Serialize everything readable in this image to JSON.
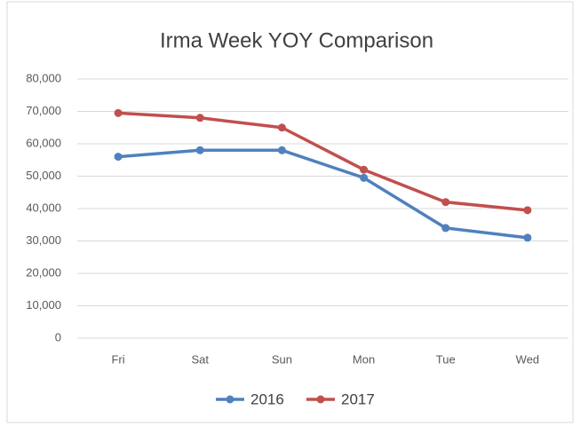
{
  "chart_data": {
    "type": "line",
    "title": "Irma Week YOY Comparison",
    "categories": [
      "Fri",
      "Sat",
      "Sun",
      "Mon",
      "Tue",
      "Wed"
    ],
    "series": [
      {
        "name": "2016",
        "color": "#4f81bd",
        "values": [
          56000,
          58000,
          58000,
          49500,
          34000,
          31000
        ]
      },
      {
        "name": "2017",
        "color": "#c0504d",
        "values": [
          69500,
          68000,
          65000,
          52000,
          42000,
          39500
        ]
      }
    ],
    "ylim": [
      0,
      80000
    ],
    "yticks": [
      0,
      {
        "value": 10000,
        "label": "10,000"
      },
      {
        "value": 20000,
        "label": "20,000"
      },
      {
        "value": 30000,
        "label": "30,000"
      },
      {
        "value": 40000,
        "label": "40,000"
      },
      {
        "value": 50000,
        "label": "50,000"
      },
      {
        "value": 60000,
        "label": "60,000"
      },
      {
        "value": 70000,
        "label": "70,000"
      },
      {
        "value": 80000,
        "label": "80,000"
      }
    ],
    "grid": true,
    "legend": "bottom"
  }
}
